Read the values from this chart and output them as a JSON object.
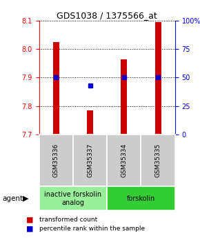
{
  "title": "GDS1038 / 1375566_at",
  "categories": [
    "GSM35336",
    "GSM35337",
    "GSM35334",
    "GSM35335"
  ],
  "bar_values": [
    8.025,
    7.785,
    7.965,
    8.095
  ],
  "percentile_values": [
    50,
    43,
    50,
    50
  ],
  "ylim": [
    7.7,
    8.1
  ],
  "yticks": [
    7.7,
    7.8,
    7.9,
    8.0,
    8.1
  ],
  "right_yticks": [
    0,
    25,
    50,
    75,
    100
  ],
  "right_ylabels": [
    "0",
    "25",
    "50",
    "75",
    "100%"
  ],
  "bar_color": "#cc0000",
  "blue_color": "#0000cc",
  "bar_width": 0.18,
  "agent_groups": [
    {
      "label": "inactive forskolin\nanalog",
      "span": [
        0,
        2
      ],
      "color": "#99ee99"
    },
    {
      "label": "forskolin",
      "span": [
        2,
        4
      ],
      "color": "#33cc33"
    }
  ],
  "gray_box_color": "#cccccc",
  "background_color": "#ffffff",
  "title_fontsize": 9,
  "tick_fontsize": 7,
  "legend_fontsize": 6.5,
  "cat_fontsize": 6.5,
  "agent_fontsize": 7
}
